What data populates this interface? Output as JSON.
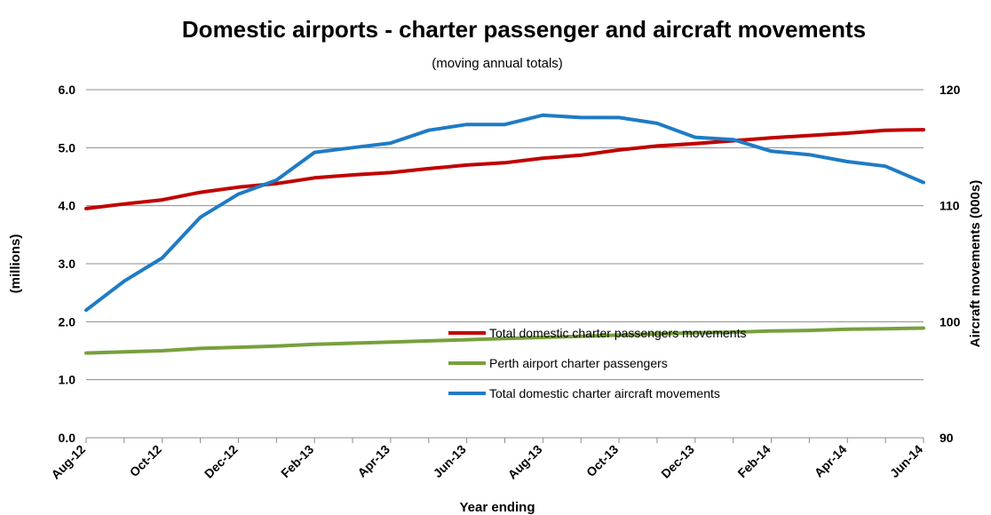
{
  "chart_data": {
    "type": "line",
    "title": "Domestic airports - charter passenger and aircraft movements",
    "subtitle": "(moving annual totals)",
    "xlabel": "Year ending",
    "ylabel": "(millions)",
    "y2label": "Aircraft movements (000s)",
    "categories": [
      "Aug-12",
      "Sep-12",
      "Oct-12",
      "Nov-12",
      "Dec-12",
      "Jan-13",
      "Feb-13",
      "Mar-13",
      "Apr-13",
      "May-13",
      "Jun-13",
      "Jul-13",
      "Aug-13",
      "Sep-13",
      "Oct-13",
      "Nov-13",
      "Dec-13",
      "Jan-14",
      "Feb-14",
      "Mar-14",
      "Apr-14",
      "May-14",
      "Jun-14"
    ],
    "tick_labels": [
      "Aug-12",
      "Oct-12",
      "Dec-12",
      "Feb-13",
      "Apr-13",
      "Jun-13",
      "Aug-13",
      "Oct-13",
      "Dec-13",
      "Feb-14",
      "Apr-14",
      "Jun-14"
    ],
    "ylim": [
      0,
      6
    ],
    "yticks": [
      "0.0",
      "1.0",
      "2.0",
      "3.0",
      "4.0",
      "5.0",
      "6.0"
    ],
    "y2lim": [
      90,
      120
    ],
    "y2ticks": [
      "90",
      "100",
      "110",
      "120"
    ],
    "grid": true,
    "legend_position": "lower-center",
    "series": [
      {
        "name": "Total domestic charter passengers movements",
        "axis": "left",
        "color": "#c00000",
        "values": [
          3.95,
          4.03,
          4.1,
          4.23,
          4.32,
          4.38,
          4.48,
          4.53,
          4.57,
          4.64,
          4.7,
          4.74,
          4.82,
          4.87,
          4.96,
          5.03,
          5.07,
          5.12,
          5.17,
          5.21,
          5.25,
          5.3,
          5.31
        ]
      },
      {
        "name": "Perth airport charter passengers",
        "axis": "left",
        "color": "#77a03c",
        "values": [
          1.46,
          1.48,
          1.5,
          1.54,
          1.56,
          1.58,
          1.61,
          1.63,
          1.65,
          1.67,
          1.69,
          1.71,
          1.73,
          1.75,
          1.77,
          1.79,
          1.81,
          1.82,
          1.84,
          1.85,
          1.87,
          1.88,
          1.89
        ]
      },
      {
        "name": "Total domestic charter aircraft movements",
        "axis": "right",
        "color": "#1f7bc4",
        "values": [
          101.0,
          103.5,
          105.5,
          109.0,
          111.0,
          112.2,
          114.6,
          115.0,
          115.4,
          116.5,
          117.0,
          117.0,
          117.8,
          117.6,
          117.6,
          117.1,
          115.9,
          115.7,
          114.7,
          114.4,
          113.8,
          113.4,
          112.0
        ]
      }
    ]
  }
}
